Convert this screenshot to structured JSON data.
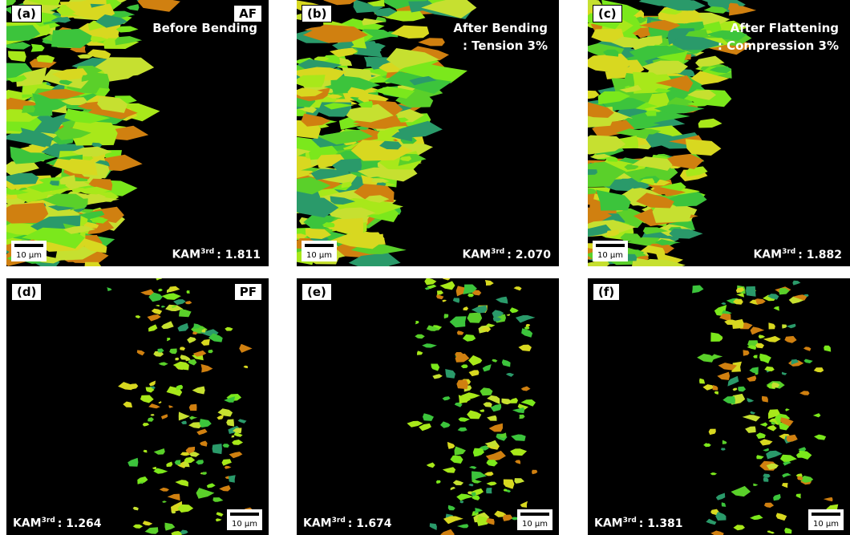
{
  "panels": [
    {
      "label": "(a)",
      "tag": "AF",
      "caption": [
        "Before Bending"
      ],
      "kam": {
        "name": "KAM",
        "sup": "3rd",
        "value": ": 1.811"
      },
      "scale_bar": "10 μm"
    },
    {
      "label": "(b)",
      "caption": [
        "After Bending",
        ": Tension 3%"
      ],
      "kam": {
        "name": "KAM",
        "sup": "3rd",
        "value": ": 2.070"
      },
      "scale_bar": "10 μm"
    },
    {
      "label": "(c)",
      "caption": [
        "After Flattening",
        ": Compression 3%"
      ],
      "kam": {
        "name": "KAM",
        "sup": "3rd",
        "value": ": 1.882"
      },
      "scale_bar": "10 μm"
    },
    {
      "label": "(d)",
      "tag": "PF",
      "kam": {
        "name": "KAM",
        "sup": "3rd",
        "value": ": 1.264"
      },
      "scale_bar": "10 μm"
    },
    {
      "label": "(e)",
      "kam": {
        "name": "KAM",
        "sup": "3rd",
        "value": ": 1.674"
      },
      "scale_bar": "10 μm"
    },
    {
      "label": "(f)",
      "kam": {
        "name": "KAM",
        "sup": "3rd",
        "value": ": 1.381"
      },
      "scale_bar": "10 μm"
    }
  ]
}
